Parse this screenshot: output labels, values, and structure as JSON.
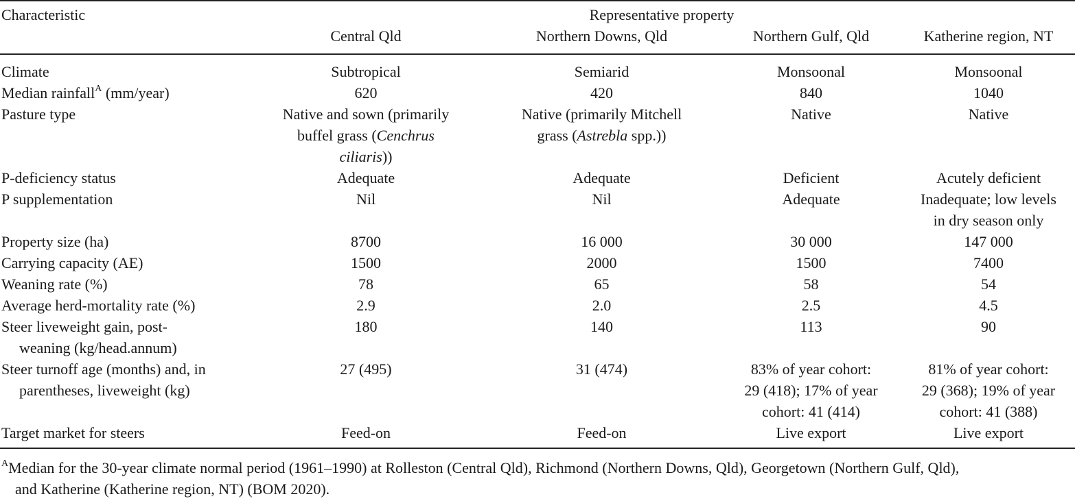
{
  "header": {
    "characteristic": "Characteristic",
    "group": "Representative property",
    "columns": [
      "Central Qld",
      "Northern Downs, Qld",
      "Northern Gulf, Qld",
      "Katherine region, NT"
    ]
  },
  "rows": {
    "climate": {
      "label": "Climate",
      "values": [
        "Subtropical",
        "Semiarid",
        "Monsoonal",
        "Monsoonal"
      ]
    },
    "rainfall": {
      "label_pre": "Median rainfall",
      "label_sup": "A",
      "label_post": " (mm/year)",
      "values": [
        "620",
        "420",
        "840",
        "1040"
      ]
    },
    "pasture": {
      "label": "Pasture type",
      "c1_l1": "Native and sown (primarily",
      "c1_l2a": "buffel grass (",
      "c1_l2i": "Cenchrus",
      "c1_l3i": "ciliaris",
      "c1_l3b": "))",
      "c2_l1": "Native (primarily Mitchell",
      "c2_l2a": "grass (",
      "c2_l2i": "Astrebla",
      "c2_l2b": " spp.))",
      "c3": "Native",
      "c4": "Native"
    },
    "pdef": {
      "label": "P-deficiency status",
      "values": [
        "Adequate",
        "Adequate",
        "Deficient",
        "Acutely deficient"
      ]
    },
    "psupp": {
      "label": "P supplementation",
      "values": [
        "Nil",
        "Nil",
        "Adequate"
      ],
      "c4_l1": "Inadequate; low levels",
      "c4_l2": "in dry season only"
    },
    "size": {
      "label": "Property size (ha)",
      "values": [
        "8700",
        "16 000",
        "30 000",
        "147 000"
      ]
    },
    "capacity": {
      "label": "Carrying capacity (AE)",
      "values": [
        "1500",
        "2000",
        "1500",
        "7400"
      ]
    },
    "weaning": {
      "label": "Weaning rate (%)",
      "values": [
        "78",
        "65",
        "58",
        "54"
      ]
    },
    "mortality": {
      "label": "Average herd-mortality rate (%)",
      "values": [
        "2.9",
        "2.0",
        "2.5",
        "4.5"
      ]
    },
    "gain": {
      "label_l1": "Steer liveweight gain, post-",
      "label_l2": "weaning (kg/head.annum)",
      "values": [
        "180",
        "140",
        "113",
        "90"
      ]
    },
    "turnoff": {
      "label_l1": "Steer turnoff age (months) and, in",
      "label_l2": "parentheses, liveweight (kg)",
      "values": [
        "27 (495)",
        "31 (474)"
      ],
      "c3_l1": "83% of year cohort:",
      "c3_l2": "29 (418); 17% of year",
      "c3_l3": "cohort: 41 (414)",
      "c4_l1": "81% of year cohort:",
      "c4_l2": "29 (368); 19% of year",
      "c4_l3": "cohort: 41 (388)"
    },
    "market": {
      "label": "Target market for steers",
      "values": [
        "Feed-on",
        "Feed-on",
        "Live export",
        "Live export"
      ]
    }
  },
  "footnote": {
    "sup": "A",
    "line1": "Median for the 30-year climate normal period (1961–1990) at Rolleston (Central Qld), Richmond (Northern Downs, Qld), Georgetown (Northern Gulf, Qld),",
    "line2": "and Katherine (Katherine region, NT) (BOM 2020)."
  }
}
